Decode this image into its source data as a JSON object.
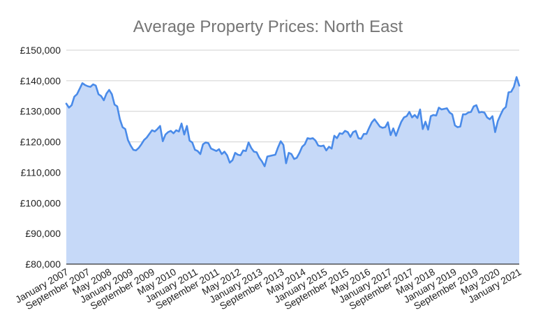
{
  "chart_data": {
    "type": "area",
    "title": "Average Property Prices: North East",
    "xlabel": "",
    "ylabel": "",
    "ylim": [
      80000,
      150000
    ],
    "y_ticks": [
      80000,
      90000,
      100000,
      110000,
      120000,
      130000,
      140000,
      150000
    ],
    "y_tick_labels": [
      "£80,000",
      "£90,000",
      "£100,000",
      "£110,000",
      "£120,000",
      "£130,000",
      "£140,000",
      "£150,000"
    ],
    "x_tick_labels": [
      "January 2007",
      "September 2007",
      "May 2008",
      "January 2009",
      "September 2009",
      "May 2010",
      "January 2011",
      "September 2011",
      "May 2012",
      "January 2013",
      "September 2013",
      "May 2014",
      "January 2015",
      "September 2015",
      "May 2016",
      "January 2017",
      "September 2017",
      "May 2018",
      "January 2019",
      "September 2019",
      "May 2020",
      "January 2021"
    ],
    "grid": true,
    "legend": "none",
    "colors": {
      "line": "#4a8be9",
      "fill": "#c6d9f8"
    },
    "series": [
      {
        "values": [
          132500,
          131200,
          132000,
          134800,
          135600,
          137400,
          139200,
          138600,
          138200,
          138000,
          138800,
          138400,
          135600,
          135000,
          133600,
          135800,
          137000,
          135600,
          132200,
          131600,
          127400,
          124800,
          124200,
          120600,
          118800,
          117400,
          117200,
          118000,
          119200,
          120600,
          121400,
          122600,
          123800,
          123400,
          124200,
          125200,
          120200,
          122400,
          123200,
          123600,
          122800,
          123800,
          123400,
          126000,
          122400,
          125200,
          120400,
          119800,
          117400,
          117000,
          116000,
          119200,
          119800,
          119600,
          117800,
          117400,
          117000,
          117600,
          116000,
          116800,
          115600,
          113200,
          114000,
          116400,
          115800,
          115600,
          117200,
          117000,
          119800,
          118000,
          116800,
          116600,
          114800,
          113600,
          112000,
          115200,
          115400,
          115600,
          115800,
          118200,
          120200,
          119000,
          113000,
          116400,
          116000,
          114400,
          114800,
          116400,
          118400,
          119200,
          121200,
          121000,
          121200,
          120400,
          118800,
          118600,
          118800,
          117200,
          118400,
          117800,
          122000,
          121200,
          122800,
          122600,
          123600,
          123200,
          121600,
          123200,
          123600,
          121200,
          121000,
          122600,
          122600,
          124600,
          126400,
          127400,
          126200,
          125000,
          124600,
          124800,
          126400,
          122200,
          124400,
          122000,
          124400,
          126600,
          128000,
          128400,
          129800,
          128000,
          128800,
          127800,
          130600,
          124200,
          126600,
          124000,
          128400,
          128800,
          128600,
          131200,
          130600,
          130800,
          131000,
          129600,
          129000,
          125400,
          124800,
          125000,
          129000,
          129000,
          129600,
          129800,
          131600,
          132000,
          129600,
          129800,
          129600,
          128000,
          127400,
          128400,
          123200,
          126800,
          128800,
          130600,
          131400,
          136200,
          136400,
          138000,
          141200,
          138400
        ]
      }
    ]
  }
}
